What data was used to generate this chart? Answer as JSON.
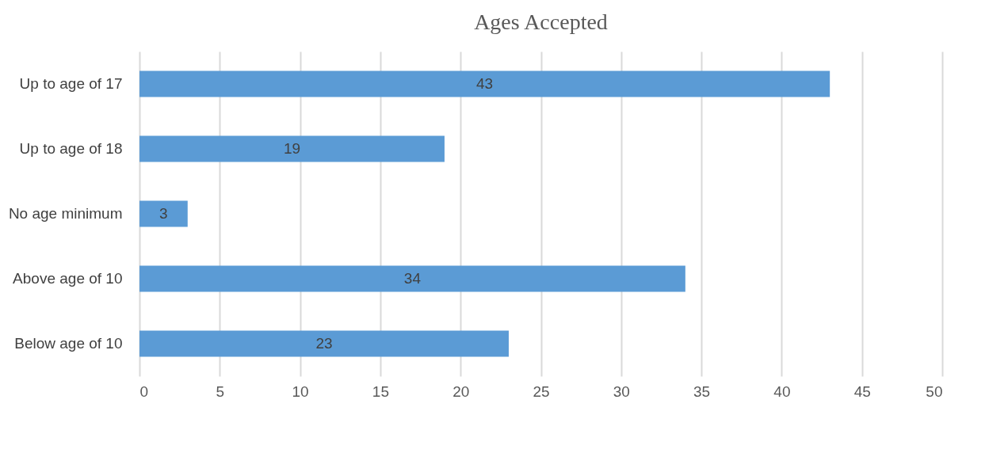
{
  "chart_data": {
    "type": "bar",
    "title": "Ages Accepted",
    "orientation": "horizontal",
    "categories": [
      "Up to age of 17",
      "Up to age of 18",
      "No age minimum",
      "Above age of 10",
      "Below age of 10"
    ],
    "values": [
      43,
      19,
      3,
      34,
      23
    ],
    "color": "#5b9bd5",
    "xlim": [
      0,
      50
    ],
    "xticks": [
      0,
      5,
      10,
      15,
      20,
      25,
      30,
      35,
      40,
      45,
      50
    ],
    "grid": "x",
    "data_labels": true
  }
}
